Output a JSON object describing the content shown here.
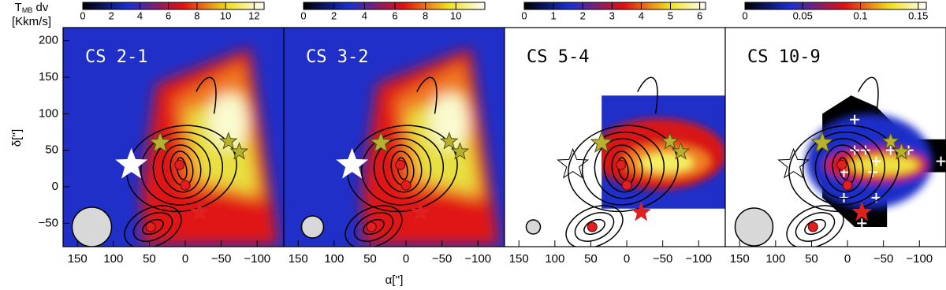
{
  "chart_data": [
    {
      "type": "heatmap",
      "title": "CS 2-1",
      "xlim": [
        170,
        -137
      ],
      "ylim": [
        -82,
        218
      ],
      "xticks": [
        150,
        100,
        50,
        0,
        {
          "value": -50,
          "label": "−50"
        },
        {
          "value": -100,
          "label": "−100"
        }
      ],
      "yticks": [
        200,
        150,
        100,
        50,
        0,
        {
          "value": -50,
          "label": "−50"
        }
      ],
      "clim": [
        0,
        12.7
      ],
      "cticks": [
        0,
        2,
        4,
        6,
        8,
        10,
        12
      ],
      "ylabel": "δ['']",
      "cbar_label": {
        "main": "T",
        "sub": "MB",
        "rest": " dv",
        "unit": "[Kkm/s]"
      }
    },
    {
      "type": "heatmap",
      "title": "CS 3-2",
      "xlim": [
        170,
        -137
      ],
      "ylim": [
        -82,
        218
      ],
      "xticks": [
        150,
        100,
        50,
        0,
        {
          "value": -50,
          "label": "−50"
        },
        {
          "value": -100,
          "label": "−100"
        }
      ],
      "clim": [
        0,
        11.9
      ],
      "cticks": [
        0,
        2,
        4,
        6,
        8,
        10
      ],
      "xlabel": "α['']"
    },
    {
      "type": "heatmap",
      "title": "CS 5-4",
      "xlim": [
        170,
        -137
      ],
      "ylim": [
        -82,
        218
      ],
      "xticks": [
        150,
        100,
        50,
        0,
        {
          "value": -50,
          "label": "−50"
        },
        {
          "value": -100,
          "label": "−100"
        }
      ],
      "clim": [
        0,
        6.2
      ],
      "cticks": [
        0,
        1,
        2,
        3,
        4,
        5,
        6
      ]
    },
    {
      "type": "heatmap",
      "title": "CS 10-9",
      "xlim": [
        170,
        -137
      ],
      "ylim": [
        -82,
        218
      ],
      "xticks": [
        150,
        100,
        50,
        0,
        {
          "value": -50,
          "label": "−50"
        },
        {
          "value": -100,
          "label": "−100"
        }
      ],
      "clim": [
        0,
        0.157
      ],
      "cticks": [
        0,
        0.05,
        0.1,
        0.15
      ]
    }
  ]
}
